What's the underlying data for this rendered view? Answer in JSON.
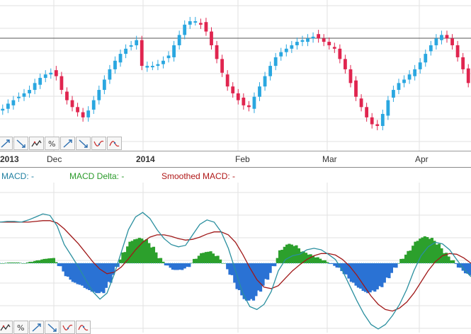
{
  "colors": {
    "up": "#2aa7e0",
    "down": "#e0254f",
    "macd_line": "#2a8f9f",
    "smoothed": "#a01818",
    "delta_pos": "#2ca02c",
    "delta_neg": "#2a72d4",
    "grid": "#e2e2e2"
  },
  "x_axis": {
    "labels": [
      "2013",
      "Dec",
      "2014",
      "Feb",
      "Mar",
      "Apr"
    ],
    "bold": [
      "2013",
      "2014"
    ]
  },
  "legend": {
    "macd": "MACD: -",
    "delta": "MACD Delta: -",
    "smoothed": "Smoothed MACD: -"
  },
  "toolbar": {
    "top": [
      {
        "name": "arrow-up-tool-icon",
        "icon": "arrow-up"
      },
      {
        "name": "arrow-down-tool-icon",
        "icon": "arrow-down"
      },
      {
        "name": "zigzag-tool-icon",
        "icon": "zigzag"
      },
      {
        "name": "percent-tool-icon",
        "icon": "percent"
      },
      {
        "name": "trend-up-tool-icon",
        "icon": "arrow-up"
      },
      {
        "name": "trend-down-tool-icon",
        "icon": "arrow-down"
      },
      {
        "name": "wave-down-tool-icon",
        "icon": "wave-down"
      },
      {
        "name": "wave-up-tool-icon",
        "icon": "wave-up"
      }
    ],
    "bottom": [
      {
        "name": "zigzag-tool-icon",
        "icon": "zigzag"
      },
      {
        "name": "percent-tool-icon",
        "icon": "percent"
      },
      {
        "name": "trend-up-tool-icon",
        "icon": "arrow-up"
      },
      {
        "name": "trend-down-tool-icon",
        "icon": "arrow-down"
      },
      {
        "name": "wave-down-tool-icon",
        "icon": "wave-down"
      },
      {
        "name": "wave-up-tool-icon",
        "icon": "wave-up"
      }
    ]
  },
  "chart_data": [
    {
      "type": "candlestick",
      "title": "",
      "x_ticks": [
        "2013",
        "Dec",
        "2014",
        "Feb",
        "Mar",
        "Apr"
      ],
      "reference_line": "horizontal line near the top",
      "grid": true,
      "trend_closes": [
        45,
        48,
        50,
        52,
        54,
        56,
        60,
        63,
        65,
        66,
        64,
        56,
        50,
        46,
        43,
        40,
        44,
        50,
        56,
        62,
        68,
        73,
        77,
        80,
        82,
        85,
        70,
        70,
        70,
        71,
        73,
        76,
        82,
        88,
        94,
        96,
        96,
        94,
        90,
        82,
        74,
        66,
        58,
        54,
        50,
        47,
        46,
        52,
        58,
        64,
        70,
        75,
        78,
        80,
        82,
        84,
        85,
        86,
        87,
        86,
        84,
        82,
        80,
        74,
        68,
        60,
        52,
        46,
        40,
        36,
        35,
        42,
        50,
        56,
        60,
        62,
        65,
        68,
        72,
        77,
        82,
        86,
        88,
        86,
        82,
        75,
        68,
        60
      ]
    },
    {
      "type": "line+bar",
      "title": "",
      "series": [
        {
          "name": "MACD",
          "kind": "line"
        },
        {
          "name": "MACD Delta",
          "kind": "bar"
        },
        {
          "name": "Smoothed MACD",
          "kind": "line"
        }
      ],
      "macd": [
        0.55,
        0.56,
        0.56,
        0.55,
        0.58,
        0.62,
        0.66,
        0.64,
        0.5,
        0.25,
        0.1,
        -0.05,
        -0.22,
        -0.38,
        -0.48,
        -0.4,
        -0.15,
        0.15,
        0.45,
        0.62,
        0.68,
        0.6,
        0.45,
        0.33,
        0.25,
        0.22,
        0.24,
        0.38,
        0.52,
        0.58,
        0.55,
        0.42,
        0.2,
        -0.1,
        -0.4,
        -0.58,
        -0.62,
        -0.55,
        -0.38,
        -0.1,
        0.05,
        0.1,
        0.12,
        0.18,
        0.2,
        0.18,
        0.12,
        0.05,
        -0.1,
        -0.3,
        -0.5,
        -0.68,
        -0.82,
        -0.88,
        -0.82,
        -0.7,
        -0.55,
        -0.35,
        -0.1,
        0.1,
        0.22,
        0.28,
        0.26,
        0.18,
        0.05,
        -0.08,
        -0.18
      ],
      "smoothed": [
        0.55,
        0.55,
        0.55,
        0.55,
        0.55,
        0.56,
        0.57,
        0.57,
        0.54,
        0.46,
        0.36,
        0.26,
        0.14,
        0.02,
        -0.08,
        -0.14,
        -0.12,
        -0.05,
        0.06,
        0.18,
        0.28,
        0.35,
        0.38,
        0.38,
        0.36,
        0.33,
        0.31,
        0.32,
        0.35,
        0.39,
        0.42,
        0.42,
        0.38,
        0.28,
        0.12,
        -0.06,
        -0.22,
        -0.32,
        -0.34,
        -0.3,
        -0.2,
        -0.1,
        -0.02,
        0.05,
        0.1,
        0.13,
        0.13,
        0.11,
        0.05,
        -0.04,
        -0.16,
        -0.3,
        -0.44,
        -0.55,
        -0.62,
        -0.64,
        -0.6,
        -0.52,
        -0.4,
        -0.25,
        -0.1,
        0.02,
        0.1,
        0.13,
        0.12,
        0.07,
        0.0
      ],
      "delta": [
        0.0,
        0.01,
        0.01,
        0.0,
        0.02,
        0.04,
        0.06,
        0.07,
        -0.04,
        -0.18,
        -0.26,
        -0.3,
        -0.36,
        -0.4,
        -0.4,
        -0.26,
        -0.05,
        0.15,
        0.3,
        0.34,
        0.32,
        0.22,
        0.07,
        -0.03,
        -0.09,
        -0.09,
        -0.05,
        0.06,
        0.14,
        0.16,
        0.1,
        0.0,
        -0.16,
        -0.36,
        -0.5,
        -0.5,
        -0.38,
        -0.22,
        -0.04,
        0.18,
        0.26,
        0.24,
        0.16,
        0.12,
        0.08,
        0.04,
        -0.01,
        -0.06,
        -0.15,
        -0.26,
        -0.34,
        -0.4,
        -0.38,
        -0.32,
        -0.2,
        -0.06,
        0.06,
        0.17,
        0.3,
        0.36,
        0.34,
        0.26,
        0.14,
        0.04,
        -0.06,
        -0.14,
        -0.18
      ]
    }
  ]
}
